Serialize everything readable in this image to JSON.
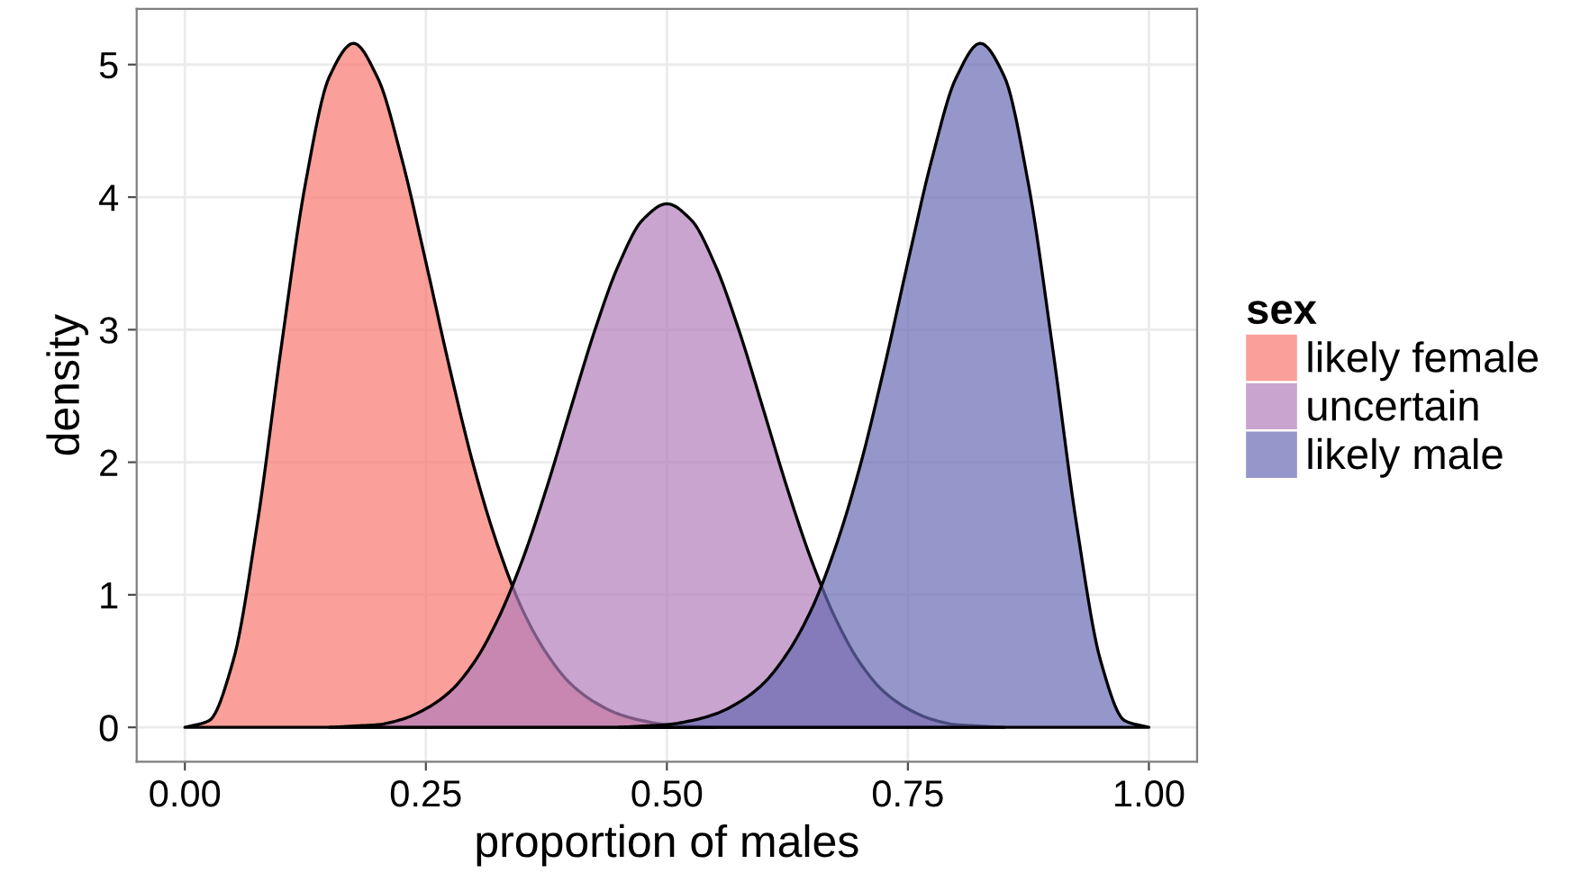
{
  "chart_data": {
    "type": "area",
    "xlabel": "proportion of males",
    "ylabel": "density",
    "legend_title": "sex",
    "legend": "right",
    "grid": true,
    "x": [
      0,
      0.025,
      0.05,
      0.075,
      0.1,
      0.125,
      0.15,
      0.175,
      0.2,
      0.225,
      0.25,
      0.275,
      0.3,
      0.325,
      0.35,
      0.375,
      0.4,
      0.425,
      0.45,
      0.475,
      0.5,
      0.525,
      0.55,
      0.575,
      0.6,
      0.625,
      0.65,
      0.675,
      0.7,
      0.725,
      0.75,
      0.775,
      0.8,
      0.825,
      0.85,
      0.875,
      0.9,
      0.925,
      0.95,
      0.975,
      1
    ],
    "series": [
      {
        "name": "likely female",
        "color": "#f8766d",
        "values": [
          0,
          0.05,
          0.5,
          1.53,
          2.87,
          4.1,
          4.91,
          5.16,
          4.9,
          4.29,
          3.51,
          2.7,
          1.96,
          1.36,
          0.89,
          0.56,
          0.33,
          0.19,
          0.1,
          0.05,
          0.02,
          0.01,
          0,
          null,
          null,
          null,
          null,
          null,
          null,
          null,
          null,
          null,
          null,
          null,
          null,
          null,
          null,
          null,
          null,
          null,
          null
        ]
      },
      {
        "name": "uncertain",
        "color": "#b07eba",
        "values": [
          null,
          null,
          null,
          null,
          null,
          null,
          0,
          0.01,
          0.02,
          0.06,
          0.14,
          0.27,
          0.49,
          0.82,
          1.26,
          1.8,
          2.4,
          2.99,
          3.49,
          3.83,
          3.95,
          3.83,
          3.49,
          2.99,
          2.4,
          1.8,
          1.26,
          0.82,
          0.49,
          0.27,
          0.14,
          0.06,
          0.02,
          0.01,
          0,
          null,
          null,
          null,
          null,
          null,
          null
        ]
      },
      {
        "name": "likely male",
        "color": "#686ab2",
        "values": [
          null,
          null,
          null,
          null,
          null,
          null,
          null,
          null,
          null,
          null,
          null,
          null,
          null,
          null,
          null,
          null,
          null,
          null,
          0,
          0.01,
          0.02,
          0.05,
          0.1,
          0.19,
          0.33,
          0.56,
          0.89,
          1.36,
          1.96,
          2.7,
          3.51,
          4.29,
          4.9,
          5.16,
          4.91,
          4.1,
          2.87,
          1.53,
          0.5,
          0.05,
          0
        ]
      }
    ],
    "xlim": [
      -0.05,
      1.05
    ],
    "ylim": [
      -0.26,
      5.42
    ],
    "xticks": [
      {
        "value": 0,
        "label": "0.00"
      },
      {
        "value": 0.25,
        "label": "0.25"
      },
      {
        "value": 0.5,
        "label": "0.50"
      },
      {
        "value": 0.75,
        "label": "0.75"
      },
      {
        "value": 1,
        "label": "1.00"
      }
    ],
    "yticks": [
      0,
      1,
      2,
      3,
      4,
      5
    ]
  }
}
